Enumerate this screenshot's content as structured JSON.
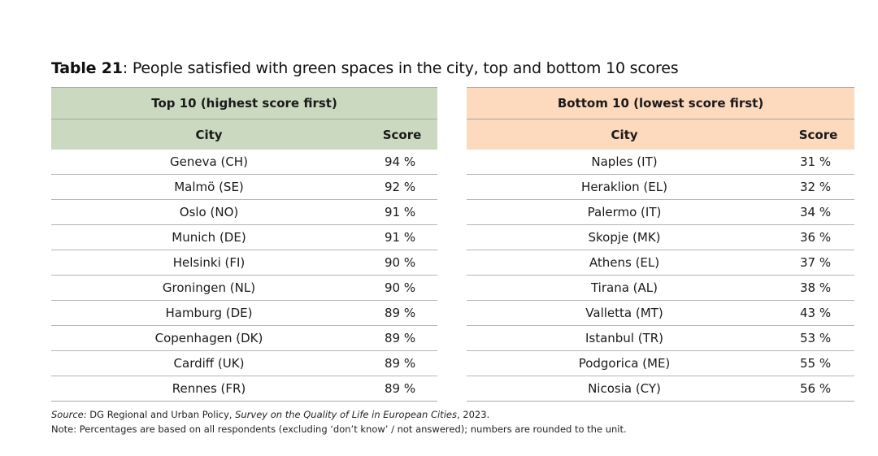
{
  "title": {
    "label": "Table 21",
    "text": ": People satisfied with green spaces in the city, top and bottom 10 scores"
  },
  "top": {
    "group_header": "Top 10 (highest score first)",
    "col_city": "City",
    "col_score": "Score",
    "rows": [
      {
        "city": "Geneva (CH)",
        "score": "94 %"
      },
      {
        "city": "Malmö (SE)",
        "score": "92 %"
      },
      {
        "city": "Oslo (NO)",
        "score": "91 %"
      },
      {
        "city": "Munich (DE)",
        "score": "91 %"
      },
      {
        "city": "Helsinki (FI)",
        "score": "90 %"
      },
      {
        "city": "Groningen (NL)",
        "score": "90 %"
      },
      {
        "city": "Hamburg (DE)",
        "score": "89 %"
      },
      {
        "city": "Copenhagen (DK)",
        "score": "89 %"
      },
      {
        "city": "Cardiff (UK)",
        "score": "89 %"
      },
      {
        "city": "Rennes (FR)",
        "score": "89 %"
      }
    ]
  },
  "bottom": {
    "group_header": "Bottom 10 (lowest score first)",
    "col_city": "City",
    "col_score": "Score",
    "rows": [
      {
        "city": "Naples (IT)",
        "score": "31 %"
      },
      {
        "city": "Heraklion (EL)",
        "score": "32 %"
      },
      {
        "city": "Palermo (IT)",
        "score": "34 %"
      },
      {
        "city": "Skopje (MK)",
        "score": "36 %"
      },
      {
        "city": "Athens (EL)",
        "score": "37 %"
      },
      {
        "city": "Tirana (AL)",
        "score": "38 %"
      },
      {
        "city": "Valletta (MT)",
        "score": "43 %"
      },
      {
        "city": "Istanbul (TR)",
        "score": "53 %"
      },
      {
        "city": "Podgorica (ME)",
        "score": "55 %"
      },
      {
        "city": "Nicosia (CY)",
        "score": "56 %"
      }
    ]
  },
  "footnotes": {
    "source_label": "Source:",
    "source_text_1": " DG Regional and Urban Policy, ",
    "source_title": "Survey on the Quality of Life in European Cities",
    "source_text_2": ", 2023.",
    "note": "Note: Percentages are based on all respondents (excluding ‘don’t know’ / not answered); numbers are rounded to the unit."
  },
  "colors": {
    "top_header_bg": "#cad9bf",
    "bottom_header_bg": "#fdd9bd"
  }
}
